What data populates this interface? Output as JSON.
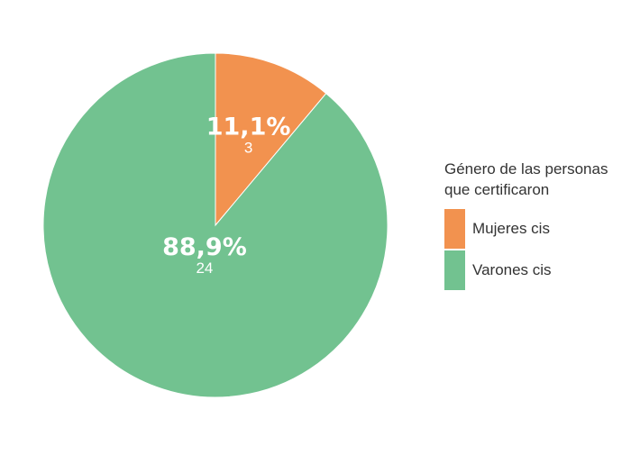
{
  "chart_data": {
    "type": "pie",
    "legend_title": "Género de las personas que certificaron",
    "legend_title_lines": [
      "Género de las personas",
      "que certificaron"
    ],
    "legend_position": "right",
    "start": "top",
    "direction": "clockwise",
    "slices": [
      {
        "label": "Mujeres cis",
        "value": 3,
        "percent": 11.1,
        "percent_text": "11,1%",
        "value_text": "3",
        "color": "#f2924f"
      },
      {
        "label": "Varones cis",
        "value": 24,
        "percent": 88.9,
        "percent_text": "88,9%",
        "value_text": "24",
        "color": "#72c290"
      }
    ]
  }
}
